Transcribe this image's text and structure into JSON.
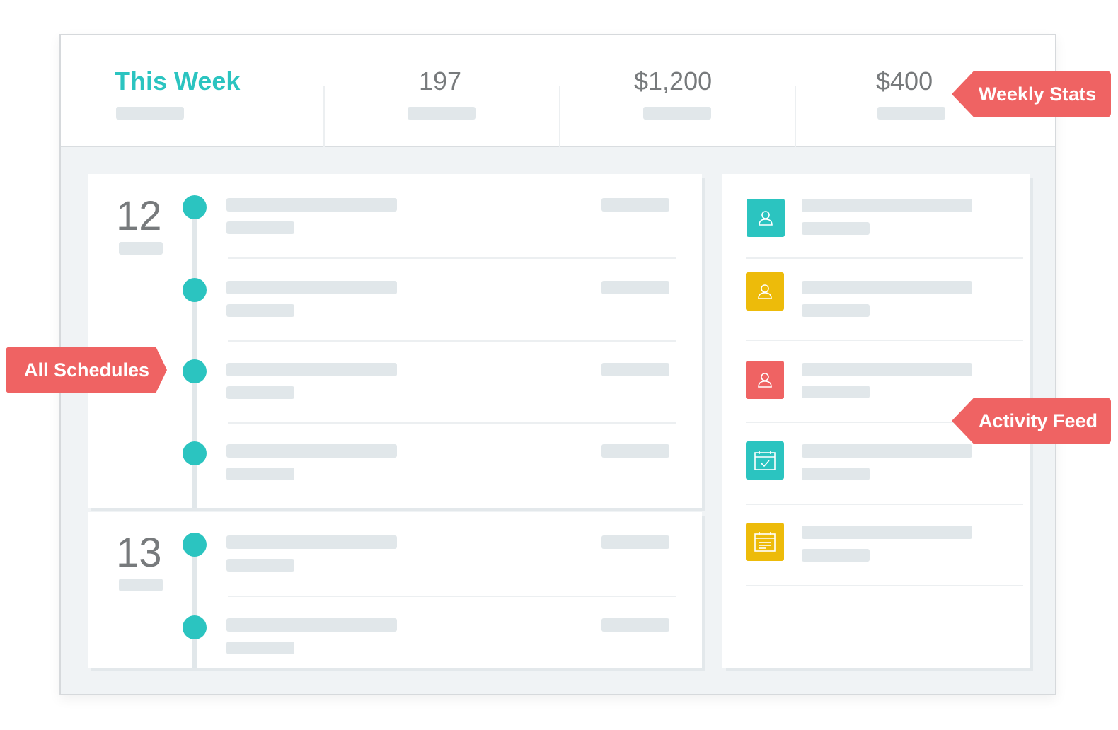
{
  "stats": {
    "week_label": "This Week",
    "value_1": "197",
    "value_2": "$1,200",
    "value_3": "$400"
  },
  "schedule": {
    "days": [
      {
        "number": "12",
        "entries": 4
      },
      {
        "number": "13",
        "entries": 2
      }
    ]
  },
  "feed": {
    "items": [
      {
        "icon": "user-icon",
        "color": "#2bc4c0"
      },
      {
        "icon": "user-icon",
        "color": "#edbb0a"
      },
      {
        "icon": "user-icon",
        "color": "#ef6363"
      },
      {
        "icon": "calendar-check-icon",
        "color": "#2bc4c0"
      },
      {
        "icon": "calendar-note-icon",
        "color": "#edbb0a"
      }
    ]
  },
  "tags": {
    "weekly_stats": "Weekly Stats",
    "all_schedules": "All Schedules",
    "activity_feed": "Activity Feed"
  },
  "colors": {
    "accent_teal": "#2bc4c0",
    "accent_yellow": "#edbb0a",
    "accent_red": "#ef6363"
  }
}
